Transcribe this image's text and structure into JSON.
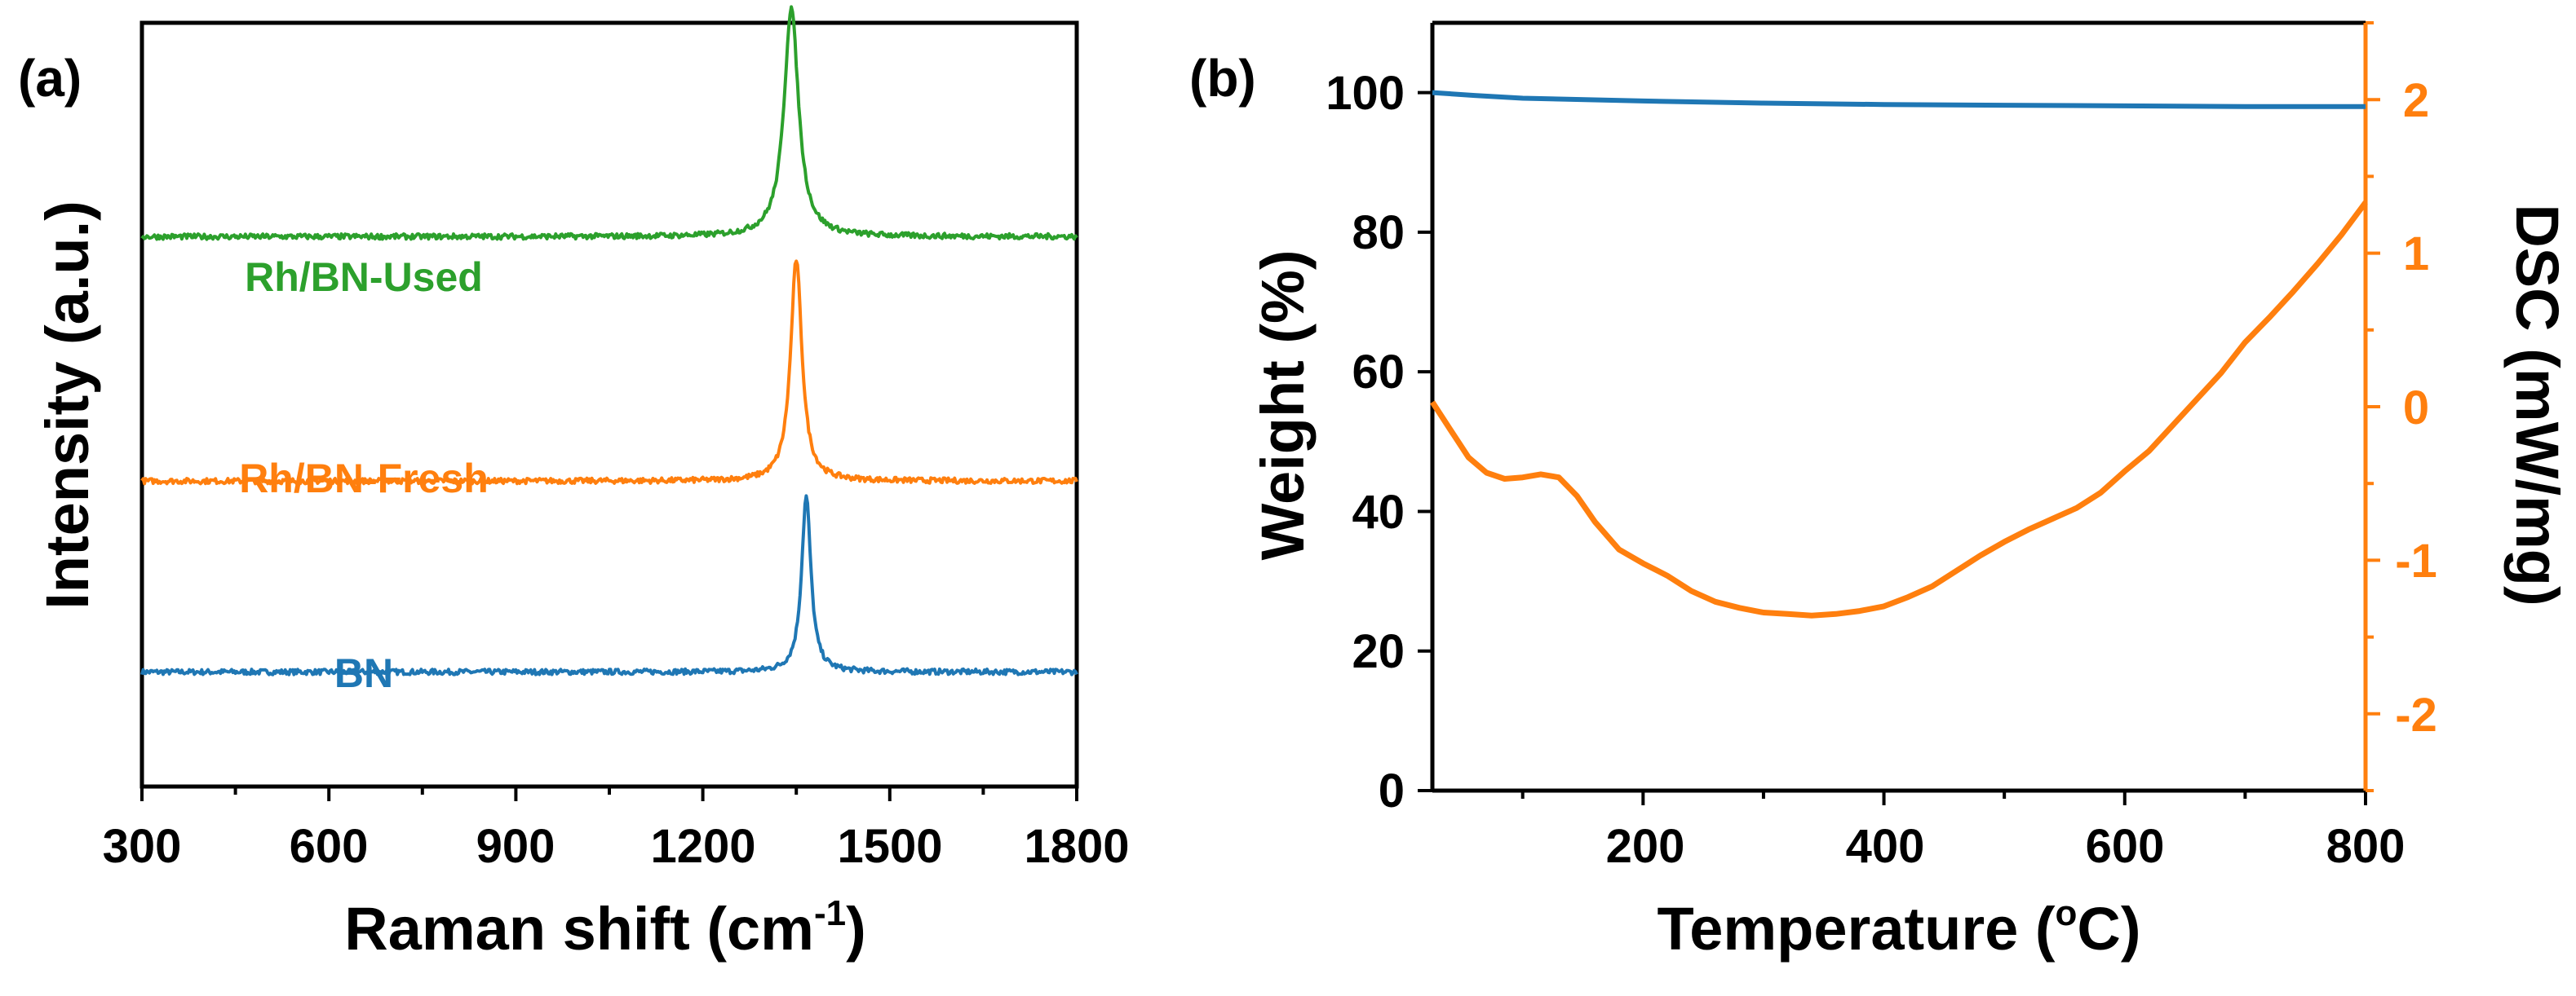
{
  "colors": {
    "blue": "#1f77b4",
    "orange": "#ff7f0e",
    "green": "#2ca02c",
    "black": "#000000"
  },
  "chart_data": [
    {
      "panel": "(a)",
      "type": "line",
      "xlabel_main": "Raman shift (cm",
      "xlabel_sup": "-1",
      "xlabel_end": ")",
      "ylabel": "Intensity (a.u.)",
      "xlim": [
        300,
        1800
      ],
      "ylim": [
        0,
        100
      ],
      "xticks": [
        300,
        600,
        900,
        1200,
        1500,
        1800
      ],
      "xtick_labels": [
        "300",
        "600",
        "900",
        "1200",
        "1500",
        "1800"
      ],
      "series": [
        {
          "name": "BN",
          "label": "BN",
          "color_key": "blue",
          "baseline": 15,
          "peak_center": 1366,
          "peak_height": 23,
          "peak_width": 9,
          "noise": 0.35
        },
        {
          "name": "Rh/BN-Fresh",
          "label": "Rh/BN-Fresh",
          "color_key": "orange",
          "baseline": 40,
          "peak_center": 1350,
          "peak_height": 29,
          "peak_width": 11,
          "noise": 0.35
        },
        {
          "name": "Rh/BN-Used",
          "label": "Rh/BN-Used",
          "color_key": "green",
          "baseline": 72,
          "peak_center": 1342,
          "peak_height": 30,
          "peak_width": 14,
          "noise": 0.35
        }
      ]
    },
    {
      "panel": "(b)",
      "type": "line",
      "xlabel_main": "Temperature (",
      "xlabel_sup": "o",
      "xlabel_end": "C)",
      "ylabel_left": "Weight (%)",
      "ylabel_right": "DSC (mW/mg)",
      "xlim": [
        25,
        800
      ],
      "ylim_left": [
        0,
        110
      ],
      "ylim_right": [
        -2.5,
        2.5
      ],
      "xticks": [
        200,
        400,
        600,
        800
      ],
      "xtick_labels": [
        "200",
        "400",
        "600",
        "800"
      ],
      "yticks_left": [
        0,
        20,
        40,
        60,
        80,
        100
      ],
      "ytick_labels_left": [
        "0",
        "20",
        "40",
        "60",
        "80",
        "100"
      ],
      "yticks_right": [
        -2,
        -1,
        0,
        1,
        2
      ],
      "ytick_labels_right": [
        "-2",
        "-1",
        "0",
        "1",
        "2"
      ],
      "series": [
        {
          "name": "Weight",
          "axis": "left",
          "color_key": "blue",
          "x": [
            25,
            60,
            100,
            200,
            300,
            400,
            500,
            600,
            700,
            800
          ],
          "y": [
            100,
            99.6,
            99.2,
            98.8,
            98.5,
            98.3,
            98.2,
            98.1,
            98.0,
            98.0
          ]
        },
        {
          "name": "DSC",
          "axis": "right",
          "color_key": "orange",
          "x": [
            25,
            40,
            55,
            70,
            85,
            100,
            115,
            130,
            145,
            160,
            180,
            200,
            220,
            240,
            260,
            280,
            300,
            320,
            340,
            360,
            380,
            400,
            420,
            440,
            460,
            480,
            500,
            520,
            540,
            560,
            580,
            600,
            620,
            640,
            660,
            680,
            700,
            720,
            740,
            760,
            780,
            800
          ],
          "y": [
            0.03,
            -0.15,
            -0.33,
            -0.43,
            -0.47,
            -0.46,
            -0.44,
            -0.46,
            -0.58,
            -0.75,
            -0.93,
            -1.02,
            -1.1,
            -1.2,
            -1.27,
            -1.31,
            -1.34,
            -1.35,
            -1.36,
            -1.35,
            -1.33,
            -1.3,
            -1.24,
            -1.17,
            -1.07,
            -0.97,
            -0.88,
            -0.8,
            -0.73,
            -0.66,
            -0.56,
            -0.42,
            -0.29,
            -0.12,
            0.05,
            0.22,
            0.42,
            0.58,
            0.75,
            0.93,
            1.12,
            1.33
          ]
        }
      ]
    }
  ]
}
